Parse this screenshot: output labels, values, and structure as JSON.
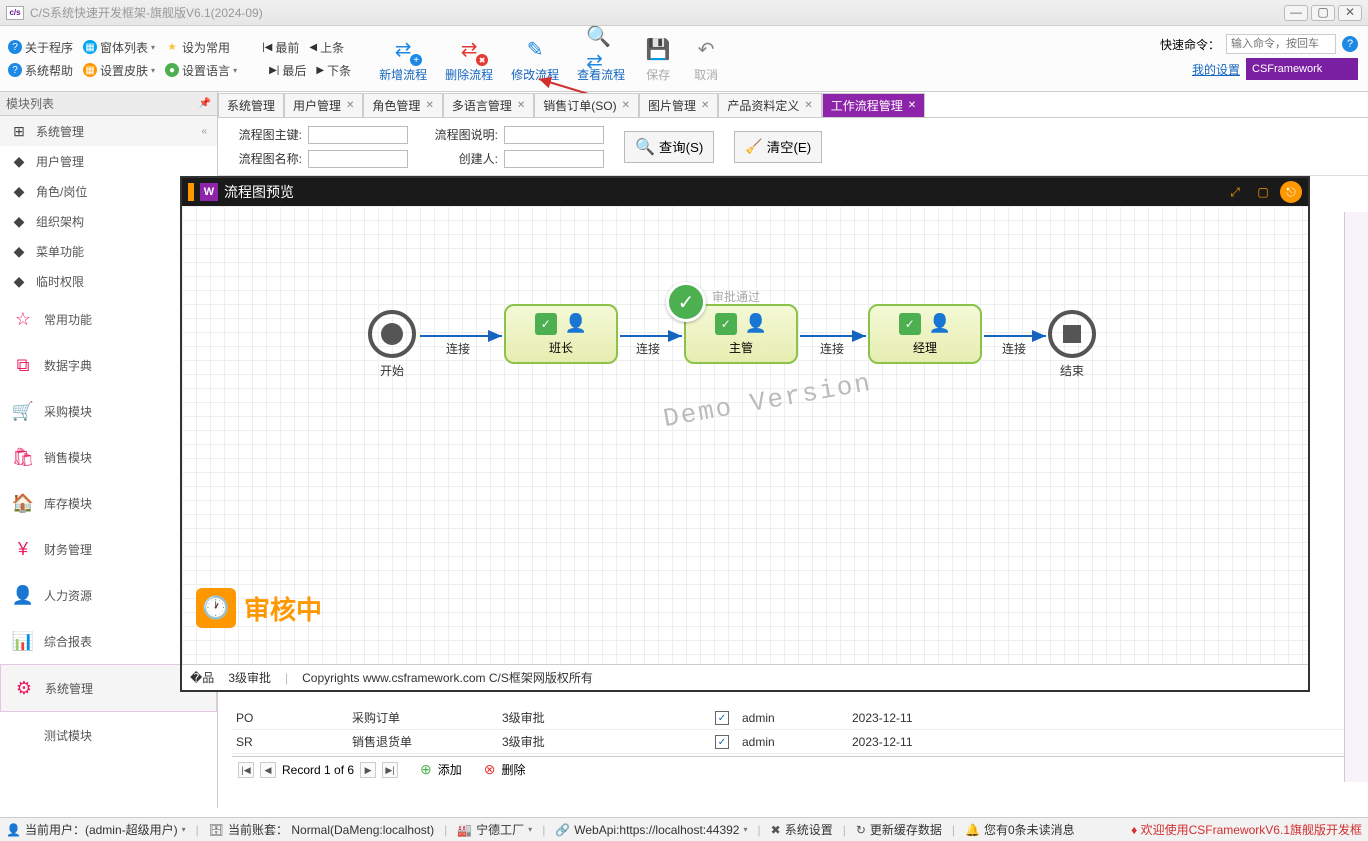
{
  "title": "C/S系统快速开发框架-旗舰版V6.1(2024-09)",
  "ribbon": {
    "row1": {
      "about": "关于程序",
      "winlist": "窗体列表",
      "set_common": "设为常用",
      "first": "最前",
      "prev": "上条"
    },
    "row2": {
      "help": "系统帮助",
      "skin": "设置皮肤",
      "lang": "设置语言",
      "last": "最后",
      "next": "下条"
    },
    "big": {
      "add": "新增流程",
      "del": "删除流程",
      "edit": "修改流程",
      "view": "查看流程",
      "save": "保存",
      "cancel": "取消"
    },
    "quick_label": "快速命令：",
    "quick_placeholder": "输入命令，按回车",
    "mysettings": "我的设置",
    "csfw": "CSFramework"
  },
  "sidebar": {
    "header": "模块列表",
    "items": [
      {
        "icon": "⊞",
        "label": "系统管理",
        "cls": "hdr-row simple",
        "collapse": true
      },
      {
        "icon": "◆",
        "label": "用户管理",
        "cls": "simple"
      },
      {
        "icon": "◆",
        "label": "角色/岗位",
        "cls": "simple"
      },
      {
        "icon": "◆",
        "label": "组织架构",
        "cls": "simple"
      },
      {
        "icon": "◆",
        "label": "菜单功能",
        "cls": "simple"
      },
      {
        "icon": "◆",
        "label": "临时权限",
        "cls": "simple"
      },
      {
        "icon": "☆",
        "label": "常用功能",
        "cls": "pink tall"
      },
      {
        "icon": "⧉",
        "label": "数据字典",
        "cls": "pink tall"
      },
      {
        "icon": "🛒",
        "label": "采购模块",
        "cls": "pink tall"
      },
      {
        "icon": "🛍",
        "label": "销售模块",
        "cls": "pink tall"
      },
      {
        "icon": "🏠",
        "label": "库存模块",
        "cls": "pink tall"
      },
      {
        "icon": "¥",
        "label": "财务管理",
        "cls": "pink tall"
      },
      {
        "icon": "👤",
        "label": "人力资源",
        "cls": "pink tall"
      },
      {
        "icon": "📊",
        "label": "综合报表",
        "cls": "pink tall"
      },
      {
        "icon": "⚙",
        "label": "系统管理",
        "cls": "pink tall active"
      },
      {
        "icon": "</>",
        "label": "测试模块",
        "cls": "pink tall"
      }
    ]
  },
  "tabs": [
    {
      "label": "系统管理",
      "close": false
    },
    {
      "label": "用户管理",
      "close": true
    },
    {
      "label": "角色管理",
      "close": true
    },
    {
      "label": "多语言管理",
      "close": true
    },
    {
      "label": "销售订单(SO)",
      "close": true
    },
    {
      "label": "图片管理",
      "close": true
    },
    {
      "label": "产品资料定义",
      "close": true
    },
    {
      "label": "工作流程管理",
      "close": true,
      "active": true
    }
  ],
  "filter": {
    "f1": "流程图主键:",
    "f2": "流程图名称:",
    "f3": "流程图说明:",
    "f4": "创建人:",
    "btn_search": "查询(S)",
    "btn_clear": "清空(E)"
  },
  "preview": {
    "title": "流程图预览",
    "nodes": {
      "start": "开始",
      "t1": "班长",
      "t2": "主管",
      "t3": "经理",
      "end": "结束",
      "edge": "连接",
      "approved": "审批通过"
    },
    "demo": "Demo Version",
    "audit": "审核中",
    "footer_level": "3级审批",
    "footer_cr": "Copyrights www.csframework.com C/S框架网版权所有"
  },
  "grid": {
    "rows": [
      {
        "c1": "PO",
        "c2": "采购订单",
        "c3": "3级审批",
        "c5": "admin",
        "c6": "2023-12-11"
      },
      {
        "c1": "SR",
        "c2": "销售退货单",
        "c3": "3级审批",
        "c5": "admin",
        "c6": "2023-12-11"
      }
    ],
    "pager": "Record 1 of 6",
    "add": "添加",
    "del": "删除"
  },
  "status": {
    "user": "当前用户：(admin-超级用户)",
    "account": "当前账套： Normal(DaMeng:localhost)",
    "factory": "宁德工厂",
    "webapi": "WebApi:https://localhost:44392",
    "settings": "系统设置",
    "cache": "更新缓存数据",
    "msg": "您有0条未读消息",
    "welcome": "欢迎使用CSFrameworkV6.1旗舰版开发框"
  }
}
